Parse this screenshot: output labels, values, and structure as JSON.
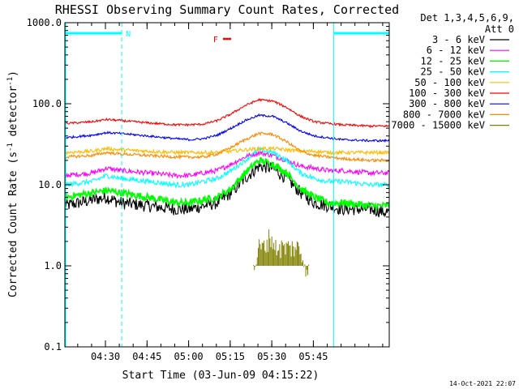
{
  "chart_data": {
    "type": "line",
    "title": "RHESSI Observing Summary Count Rates, Corrected",
    "xlabel": "Start Time (03-Jun-09 04:15:22)",
    "ylabel_main": "Corrected Count Rate (s",
    "ylabel_sup1": "-1",
    "ylabel_mid": " detector",
    "ylabel_sup2": "-1",
    "ylabel_end": ")",
    "y_scale": "log",
    "ylim": [
      0.1,
      1000
    ],
    "xlim_minutes": [
      0,
      117
    ],
    "x_ticks": [
      {
        "label": "04:30",
        "minute": 14.63
      },
      {
        "label": "04:45",
        "minute": 29.63
      },
      {
        "label": "05:00",
        "minute": 44.63
      },
      {
        "label": "05:15",
        "minute": 59.63
      },
      {
        "label": "05:30",
        "minute": 74.63
      },
      {
        "label": "05:45",
        "minute": 89.63
      }
    ],
    "y_ticks": [
      {
        "label": "1000.0",
        "value": 1000
      },
      {
        "label": "100.0",
        "value": 100
      },
      {
        "label": "10.0",
        "value": 10
      },
      {
        "label": "1.0",
        "value": 1
      },
      {
        "label": "0.1",
        "value": 0.1
      }
    ],
    "legend_header": [
      "Det 1,3,4,5,6,9,",
      "Att 0"
    ],
    "legend_position": "right",
    "timestamp": "14-Oct-2021 22:07",
    "series": [
      {
        "name": "3 - 6 keV",
        "color": "#000000",
        "x": [
          0,
          10,
          15,
          20,
          30,
          40,
          45,
          50,
          55,
          60,
          65,
          70,
          75,
          80,
          85,
          90,
          95,
          100,
          110,
          117
        ],
        "y": [
          5.5,
          6.5,
          7,
          6,
          5.5,
          5,
          5,
          5.5,
          6,
          8,
          12,
          17,
          16,
          12,
          8,
          6,
          5.5,
          5,
          5,
          4.5
        ]
      },
      {
        "name": "6 - 12 keV",
        "color": "#ff00ff",
        "x": [
          0,
          10,
          15,
          20,
          30,
          40,
          45,
          50,
          55,
          60,
          65,
          70,
          75,
          80,
          85,
          90,
          95,
          100,
          110,
          117
        ],
        "y": [
          13,
          14,
          16,
          15,
          14,
          13,
          13,
          14,
          15,
          18,
          22,
          25,
          23,
          20,
          17,
          16,
          15,
          15,
          14,
          14
        ]
      },
      {
        "name": "12 - 25 keV",
        "color": "#00ff00",
        "x": [
          0,
          10,
          15,
          20,
          30,
          40,
          45,
          50,
          55,
          60,
          65,
          70,
          75,
          80,
          85,
          90,
          95,
          100,
          110,
          117
        ],
        "y": [
          7,
          8,
          8.5,
          8,
          7,
          6,
          6,
          6.5,
          7,
          9,
          14,
          20,
          18,
          14,
          9,
          7,
          6,
          6,
          5.5,
          5.5
        ]
      },
      {
        "name": "25 - 50 keV",
        "color": "#00ffff",
        "x": [
          0,
          10,
          15,
          20,
          30,
          40,
          45,
          50,
          55,
          60,
          65,
          70,
          75,
          80,
          85,
          90,
          95,
          100,
          110,
          117
        ],
        "y": [
          10,
          11,
          13,
          12,
          11,
          10,
          10,
          11,
          12,
          15,
          20,
          27,
          25,
          20,
          14,
          12,
          11,
          11,
          10,
          10
        ]
      },
      {
        "name": "50 - 100 keV",
        "color": "#ffbb00",
        "x": [
          0,
          10,
          15,
          20,
          30,
          40,
          45,
          50,
          55,
          60,
          65,
          70,
          75,
          80,
          85,
          90,
          95,
          100,
          110,
          117
        ],
        "y": [
          25,
          26,
          28,
          27,
          26,
          25,
          25,
          25,
          25,
          26,
          27,
          28,
          28,
          27,
          26,
          26,
          25,
          25,
          25,
          25
        ]
      },
      {
        "name": "100 - 300 keV",
        "color": "#ff0000",
        "x": [
          0,
          10,
          15,
          20,
          30,
          40,
          45,
          50,
          55,
          60,
          65,
          70,
          75,
          80,
          85,
          90,
          95,
          100,
          110,
          117
        ],
        "y": [
          57,
          60,
          64,
          62,
          58,
          55,
          55,
          56,
          62,
          75,
          95,
          112,
          108,
          90,
          70,
          60,
          57,
          55,
          53,
          53
        ]
      },
      {
        "name": "300 - 800 keV",
        "color": "#0000ff",
        "x": [
          0,
          10,
          15,
          20,
          30,
          40,
          45,
          50,
          55,
          60,
          65,
          70,
          75,
          80,
          85,
          90,
          95,
          100,
          110,
          117
        ],
        "y": [
          38,
          41,
          44,
          43,
          40,
          37,
          36,
          37,
          41,
          50,
          62,
          72,
          70,
          58,
          46,
          40,
          38,
          36,
          35,
          35
        ]
      },
      {
        "name": "800 - 7000 keV",
        "color": "#ff8800",
        "x": [
          0,
          10,
          15,
          20,
          30,
          40,
          45,
          50,
          55,
          60,
          65,
          70,
          75,
          80,
          85,
          90,
          95,
          100,
          110,
          117
        ],
        "y": [
          22,
          23,
          25,
          24,
          23,
          22,
          22,
          22,
          24,
          29,
          36,
          43,
          42,
          34,
          26,
          23,
          22,
          21,
          20,
          20
        ]
      },
      {
        "name": "7000 - 15000 keV",
        "color": "#808000",
        "x": [
          68,
          70,
          72,
          74,
          76,
          80,
          84,
          88
        ],
        "y": [
          1,
          2,
          2,
          2.8,
          2,
          2,
          2,
          1
        ]
      }
    ],
    "markers": [
      {
        "label": "N",
        "color": "#00ffff",
        "x_start": 0,
        "x_end": 20.5
      },
      {
        "label": "",
        "color": "#00ffff",
        "x_start": 97,
        "x_end": 117
      },
      {
        "label": "F",
        "color": "#ff0000",
        "x_start": 57,
        "x_end": 60
      }
    ],
    "vertical_lines": [
      {
        "x": 20.5,
        "color": "#00ffff",
        "style": "dashed"
      },
      {
        "x": 97,
        "color": "#00ffff",
        "style": "solid"
      },
      {
        "x": 117,
        "color": "#00ffff",
        "style": "dashed"
      }
    ]
  }
}
